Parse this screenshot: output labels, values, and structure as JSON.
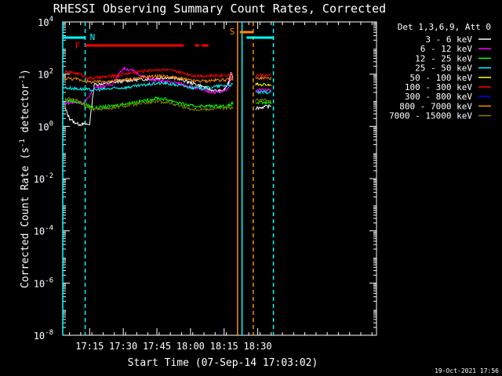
{
  "chart_data": {
    "type": "line",
    "title": "RHESSI Observing Summary Count Rates, Corrected",
    "xlabel": "Start Time (07-Sep-14 17:03:02)",
    "ylabel_main": "Corrected Count Rate (s",
    "ylabel_sup1": "-1",
    "ylabel_mid": " detector",
    "ylabel_sup2": "-1",
    "ylabel_end": ")",
    "yscale": "log",
    "ylim_exp": [
      -8,
      4
    ],
    "xlim_min": [
      0,
      140
    ],
    "x_ticks": [
      {
        "min": 12,
        "label": "17:15"
      },
      {
        "min": 27,
        "label": "17:30"
      },
      {
        "min": 42,
        "label": "17:45"
      },
      {
        "min": 57,
        "label": "18:00"
      },
      {
        "min": 72,
        "label": "18:15"
      },
      {
        "min": 87,
        "label": "18:30"
      }
    ],
    "y_ticks": [
      {
        "exp": 4,
        "label": "4"
      },
      {
        "exp": 2,
        "label": "2"
      },
      {
        "exp": 0,
        "label": "0"
      },
      {
        "exp": -2,
        "label": "-2"
      },
      {
        "exp": -4,
        "label": "-4"
      },
      {
        "exp": -6,
        "label": "-6"
      },
      {
        "exp": -8,
        "label": "-8"
      }
    ],
    "y_tick_base": "10",
    "legend_header": "Det 1,3,6,9, Att 0",
    "legend_placement": "right",
    "series": [
      {
        "name": "3 - 6 keV",
        "color": "#ffffff",
        "gaps": [
          [
            80,
            86
          ]
        ],
        "points": [
          [
            1,
            5
          ],
          [
            3,
            2
          ],
          [
            5,
            1.5
          ],
          [
            7,
            1.2
          ],
          [
            9,
            1.2
          ],
          [
            12,
            1.2
          ],
          [
            14,
            40
          ],
          [
            20,
            45
          ],
          [
            27,
            55
          ],
          [
            32,
            60
          ],
          [
            38,
            65
          ],
          [
            42,
            70
          ],
          [
            47,
            75
          ],
          [
            52,
            65
          ],
          [
            56,
            50
          ],
          [
            62,
            35
          ],
          [
            66,
            25
          ],
          [
            70,
            22
          ],
          [
            72,
            25
          ],
          [
            74,
            45
          ],
          [
            75,
            120
          ],
          [
            76,
            80
          ],
          [
            86,
            5
          ],
          [
            93,
            6
          ]
        ]
      },
      {
        "name": "6 - 12 keV",
        "color": "#ff00ff",
        "gaps": [
          [
            80,
            86
          ]
        ],
        "points": [
          [
            1,
            8
          ],
          [
            10,
            8
          ],
          [
            14,
            30
          ],
          [
            22,
            40
          ],
          [
            27,
            170
          ],
          [
            31,
            140
          ],
          [
            36,
            80
          ],
          [
            40,
            60
          ],
          [
            44,
            55
          ],
          [
            48,
            50
          ],
          [
            52,
            45
          ],
          [
            56,
            35
          ],
          [
            60,
            28
          ],
          [
            64,
            22
          ],
          [
            68,
            20
          ],
          [
            72,
            22
          ],
          [
            74,
            30
          ],
          [
            75,
            80
          ],
          [
            76,
            60
          ],
          [
            86,
            25
          ],
          [
            93,
            25
          ]
        ]
      },
      {
        "name": "12 - 25 keV",
        "color": "#00ff00",
        "gaps": [
          [
            80,
            86
          ]
        ],
        "points": [
          [
            1,
            10
          ],
          [
            6,
            9
          ],
          [
            12,
            6
          ],
          [
            14,
            5
          ],
          [
            22,
            6
          ],
          [
            30,
            8
          ],
          [
            38,
            10
          ],
          [
            42,
            12
          ],
          [
            46,
            11
          ],
          [
            50,
            9
          ],
          [
            54,
            7
          ],
          [
            58,
            6
          ],
          [
            64,
            6
          ],
          [
            70,
            6
          ],
          [
            74,
            6
          ],
          [
            76,
            8
          ],
          [
            86,
            8
          ],
          [
            93,
            8
          ]
        ]
      },
      {
        "name": "25 - 50 keV",
        "color": "#00ffff",
        "gaps": [
          [
            80,
            86
          ]
        ],
        "points": [
          [
            1,
            30
          ],
          [
            6,
            28
          ],
          [
            12,
            25
          ],
          [
            14,
            25
          ],
          [
            22,
            28
          ],
          [
            30,
            32
          ],
          [
            38,
            40
          ],
          [
            42,
            45
          ],
          [
            46,
            44
          ],
          [
            50,
            40
          ],
          [
            54,
            35
          ],
          [
            58,
            30
          ],
          [
            64,
            30
          ],
          [
            70,
            35
          ],
          [
            74,
            38
          ],
          [
            76,
            40
          ],
          [
            86,
            20
          ],
          [
            93,
            20
          ]
        ]
      },
      {
        "name": "50 - 100 keV",
        "color": "#ffff00",
        "gaps": [
          [
            80,
            86
          ]
        ],
        "points": [
          [
            86,
            40
          ],
          [
            93,
            40
          ]
        ]
      },
      {
        "name": "100 - 300 keV",
        "color": "#ff0000",
        "gaps": [
          [
            80,
            86
          ]
        ],
        "points": [
          [
            1,
            120
          ],
          [
            6,
            110
          ],
          [
            12,
            70
          ],
          [
            14,
            70
          ],
          [
            22,
            85
          ],
          [
            30,
            110
          ],
          [
            38,
            140
          ],
          [
            42,
            150
          ],
          [
            46,
            145
          ],
          [
            50,
            130
          ],
          [
            54,
            110
          ],
          [
            58,
            90
          ],
          [
            64,
            85
          ],
          [
            70,
            90
          ],
          [
            74,
            95
          ],
          [
            76,
            100
          ],
          [
            86,
            90
          ],
          [
            93,
            90
          ]
        ]
      },
      {
        "name": "300 - 800 keV",
        "color": "#0000ff",
        "gaps": [
          [
            80,
            86
          ]
        ],
        "points": []
      },
      {
        "name": "800 - 7000 keV",
        "color": "#ff8c00",
        "gaps": [
          [
            80,
            86
          ]
        ],
        "points": [
          [
            1,
            70
          ],
          [
            6,
            65
          ],
          [
            12,
            50
          ],
          [
            14,
            50
          ],
          [
            22,
            55
          ],
          [
            30,
            65
          ],
          [
            38,
            80
          ],
          [
            42,
            85
          ],
          [
            46,
            82
          ],
          [
            50,
            75
          ],
          [
            54,
            65
          ],
          [
            58,
            55
          ],
          [
            64,
            55
          ],
          [
            70,
            60
          ],
          [
            74,
            62
          ],
          [
            76,
            65
          ],
          [
            86,
            70
          ],
          [
            93,
            70
          ]
        ]
      },
      {
        "name": "7000 - 15000 keV",
        "color": "#808000",
        "gaps": [
          [
            80,
            86
          ]
        ],
        "points": [
          [
            1,
            12
          ],
          [
            6,
            10
          ],
          [
            12,
            5
          ],
          [
            14,
            4.5
          ],
          [
            22,
            5
          ],
          [
            30,
            6.5
          ],
          [
            38,
            8
          ],
          [
            42,
            9
          ],
          [
            46,
            8.5
          ],
          [
            50,
            7
          ],
          [
            54,
            5.5
          ],
          [
            58,
            4.5
          ],
          [
            64,
            4.5
          ],
          [
            70,
            5
          ],
          [
            74,
            5
          ],
          [
            76,
            5
          ],
          [
            86,
            10
          ],
          [
            93,
            10
          ]
        ]
      }
    ],
    "saa_label": "S",
    "saa_bars": [
      [
        79,
        85
      ]
    ],
    "flare_label": "F",
    "flare_bars": [
      [
        10,
        54
      ],
      [
        59,
        61
      ],
      [
        62,
        65
      ]
    ],
    "night_label": "N",
    "night_bars": [
      [
        -5,
        10
      ],
      [
        82,
        94
      ]
    ],
    "vlines": [
      {
        "min": 0,
        "color": "#00ffff",
        "dash": false
      },
      {
        "min": 10,
        "color": "#00ffff",
        "dash": true
      },
      {
        "min": 78,
        "color": "#ff8c00",
        "dash": false
      },
      {
        "min": 80,
        "color": "#00ffff",
        "dash": false
      },
      {
        "min": 85,
        "color": "#ff8c00",
        "dash": true
      },
      {
        "min": 94,
        "color": "#00ffff",
        "dash": true
      }
    ],
    "grid": false
  },
  "footer_date": "19-Oct-2021 17:56"
}
